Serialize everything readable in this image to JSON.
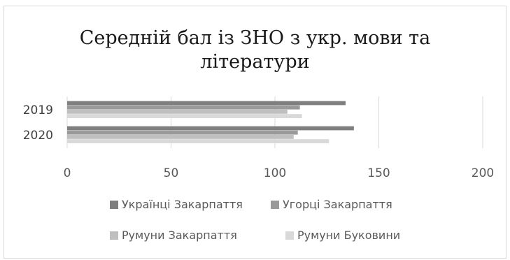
{
  "chart_data": {
    "type": "bar",
    "orientation": "horizontal",
    "title_line1": "Середній бал із ЗНО з укр. мови та",
    "title_line2": "літератури",
    "categories": [
      "2019",
      "2020"
    ],
    "series": [
      {
        "name": "Українці Закарпаття",
        "color": "#7f7f7f",
        "values": [
          134,
          138
        ]
      },
      {
        "name": "Угорці Закарпаття",
        "color": "#9a9a9a",
        "values": [
          112,
          111
        ]
      },
      {
        "name": "Румуни Закарпаття",
        "color": "#bfbfbf",
        "values": [
          106,
          109
        ]
      },
      {
        "name": "Румуни Буковини",
        "color": "#d9d9d9",
        "values": [
          113,
          126
        ]
      }
    ],
    "xlim": [
      0,
      200
    ],
    "xticks": [
      0,
      50,
      100,
      150,
      200
    ],
    "grid": true,
    "legend_position": "bottom"
  }
}
